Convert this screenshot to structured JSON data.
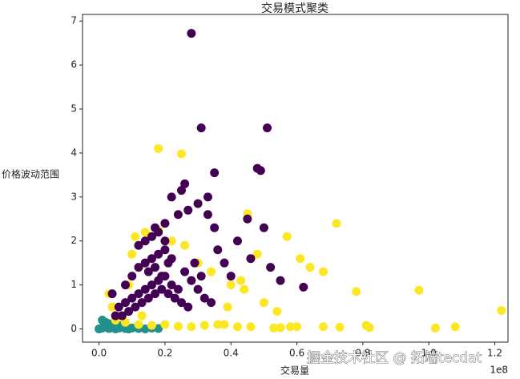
{
  "chart_data": {
    "type": "scatter",
    "title": "交易模式聚类",
    "x_label": "交易量",
    "y_label": "价格波动范围",
    "x_offset_label": "1e8",
    "watermark": "掘金技术社区 @ 拓端tecdat",
    "xlim": [
      -0.05,
      1.24
    ],
    "ylim": [
      -0.3,
      7.15
    ],
    "xticks": [
      {
        "value": 0,
        "label": "0.0"
      },
      {
        "value": 0.2,
        "label": "0.2"
      },
      {
        "value": 0.4,
        "label": "0.4"
      },
      {
        "value": 0.6,
        "label": "0.6"
      },
      {
        "value": 0.8,
        "label": "0.8"
      },
      {
        "value": 1,
        "label": "1.0"
      },
      {
        "value": 1.2,
        "label": "1.2"
      }
    ],
    "yticks": [
      0,
      1,
      2,
      3,
      4,
      5,
      6,
      7
    ],
    "series": [
      {
        "color": "#21918c",
        "x": [
          0.0,
          0.01,
          0.02,
          0.03,
          0.04,
          0.05,
          0.06,
          0.07,
          0.08,
          0.09,
          0.1,
          0.12,
          0.14,
          0.16,
          0.18,
          0.02,
          0.04,
          0.01,
          0.03,
          0.06
        ],
        "values": [
          0.0,
          0.02,
          0.05,
          0.01,
          0.03,
          0.0,
          0.02,
          0.04,
          0.01,
          0.0,
          0.02,
          0.01,
          0.0,
          0.02,
          0.01,
          0.15,
          0.1,
          0.2,
          0.12,
          0.08
        ]
      },
      {
        "color": "#fde725",
        "x": [
          0.18,
          0.25,
          0.45,
          0.72,
          0.57,
          0.61,
          0.64,
          0.68,
          0.78,
          0.97,
          1.22,
          0.6,
          0.55,
          0.53,
          0.58,
          0.68,
          0.73,
          0.81,
          0.82,
          1.02,
          1.08,
          0.38,
          0.42,
          0.46,
          0.36,
          0.32,
          0.28,
          0.24,
          0.2,
          0.16,
          0.12,
          0.08,
          0.04,
          0.03,
          0.1,
          0.14,
          0.18,
          0.22,
          0.26,
          0.3,
          0.34,
          0.4,
          0.44,
          0.5,
          0.48,
          0.54,
          0.09,
          0.11,
          0.05,
          0.13,
          0.39,
          0.43
        ],
        "values": [
          4.1,
          3.98,
          2.62,
          2.4,
          2.1,
          1.6,
          1.4,
          1.3,
          0.85,
          0.88,
          0.42,
          0.05,
          0.03,
          0.02,
          0.05,
          0.05,
          0.04,
          0.08,
          0.03,
          0.02,
          0.05,
          0.1,
          0.05,
          0.05,
          0.1,
          0.08,
          0.05,
          0.06,
          0.1,
          0.08,
          0.1,
          0.15,
          0.5,
          0.8,
          1.7,
          2.2,
          2.25,
          2.0,
          1.9,
          1.5,
          1.3,
          1.0,
          0.9,
          0.6,
          1.7,
          0.4,
          1.0,
          2.1,
          0.2,
          0.3,
          0.5,
          1.1
        ]
      },
      {
        "color": "#440154",
        "x": [
          0.06,
          0.08,
          0.1,
          0.12,
          0.14,
          0.16,
          0.18,
          0.2,
          0.22,
          0.24,
          0.07,
          0.09,
          0.11,
          0.13,
          0.15,
          0.17,
          0.19,
          0.21,
          0.23,
          0.25,
          0.27,
          0.08,
          0.1,
          0.12,
          0.14,
          0.16,
          0.18,
          0.2,
          0.22,
          0.12,
          0.14,
          0.16,
          0.18,
          0.2,
          0.15,
          0.17,
          0.19,
          0.21,
          0.26,
          0.28,
          0.3,
          0.32,
          0.34,
          0.29,
          0.31,
          0.28,
          0.31,
          0.51,
          0.35,
          0.48,
          0.49,
          0.26,
          0.25,
          0.33,
          0.22,
          0.3,
          0.33,
          0.27,
          0.35,
          0.45,
          0.5,
          0.42,
          0.46,
          0.52,
          0.55,
          0.62,
          0.4,
          0.38,
          0.36,
          0.24,
          0.2,
          0.17,
          0.04,
          0.05
        ],
        "values": [
          0.5,
          0.6,
          0.7,
          0.8,
          0.9,
          1.0,
          1.1,
          1.2,
          1.0,
          0.9,
          0.3,
          0.4,
          0.5,
          0.6,
          0.7,
          0.8,
          0.9,
          0.8,
          0.7,
          0.6,
          0.5,
          1.0,
          1.2,
          1.4,
          1.5,
          1.6,
          1.7,
          1.8,
          1.6,
          1.9,
          2.0,
          2.1,
          2.2,
          2.0,
          1.3,
          1.4,
          1.2,
          1.5,
          1.3,
          1.1,
          0.9,
          0.7,
          0.6,
          1.5,
          1.2,
          6.72,
          4.57,
          4.57,
          3.55,
          3.65,
          3.6,
          3.3,
          3.15,
          3.0,
          3.0,
          2.85,
          2.6,
          2.7,
          2.3,
          2.5,
          2.3,
          2.0,
          1.6,
          1.4,
          1.1,
          0.95,
          1.2,
          1.5,
          1.8,
          2.6,
          2.4,
          2.3,
          0.8,
          0.3
        ]
      }
    ]
  }
}
